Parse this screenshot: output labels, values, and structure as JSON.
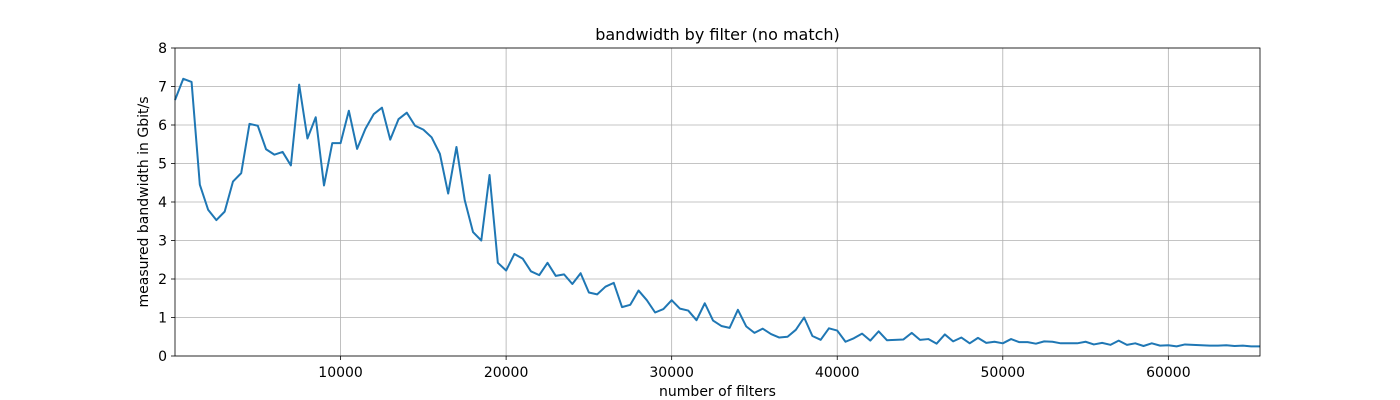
{
  "chart_data": {
    "type": "line",
    "title": "bandwidth by filter (no match)",
    "xlabel": "number of filters",
    "ylabel": "measured bandwidth in Gbit/s",
    "xlim": [
      0,
      65536
    ],
    "ylim": [
      0,
      8
    ],
    "x_ticks": [
      10000,
      20000,
      30000,
      40000,
      50000,
      60000
    ],
    "x_tick_labels": [
      "10000",
      "20000",
      "30000",
      "40000",
      "50000",
      "60000"
    ],
    "y_ticks": [
      0,
      1,
      2,
      3,
      4,
      5,
      6,
      7,
      8
    ],
    "y_tick_labels": [
      "0",
      "1",
      "2",
      "3",
      "4",
      "5",
      "6",
      "7",
      "8"
    ],
    "grid": true,
    "color": "#1f77b4",
    "series": [
      {
        "x": [
          0,
          500,
          1000,
          1500,
          2000,
          2500,
          3000,
          3500,
          4000,
          4500,
          5000,
          5500,
          6000,
          6500,
          7000,
          7500,
          8000,
          8500,
          9000,
          9500,
          10000,
          10500,
          11000,
          11500,
          12000,
          12500,
          13000,
          13500,
          14000,
          14500,
          15000,
          15500,
          16000,
          16500,
          17000,
          17500,
          18000,
          18500,
          19000,
          19500,
          20000,
          20500,
          21000,
          21500,
          22000,
          22500,
          23000,
          23500,
          24000,
          24500,
          25000,
          25500,
          26000,
          26500,
          27000,
          27500,
          28000,
          28500,
          29000,
          29500,
          30000,
          30500,
          31000,
          31500,
          32000,
          32500,
          33000,
          33500,
          34000,
          34500,
          35000,
          35500,
          36000,
          36500,
          37000,
          37500,
          38000,
          38500,
          39000,
          39500,
          40000,
          40500,
          41000,
          41500,
          42000,
          42500,
          43000,
          43500,
          44000,
          44500,
          45000,
          45500,
          46000,
          46500,
          47000,
          47500,
          48000,
          48500,
          49000,
          49500,
          50000,
          50500,
          51000,
          51500,
          52000,
          52500,
          53000,
          53500,
          54000,
          54500,
          55000,
          55500,
          56000,
          56500,
          57000,
          57500,
          58000,
          58500,
          59000,
          59500,
          60000,
          60500,
          61000,
          61500,
          62000,
          62500,
          63000,
          63500,
          64000,
          64500,
          65000,
          65536
        ],
        "values": [
          6.65,
          7.2,
          7.12,
          4.45,
          3.8,
          3.53,
          3.75,
          4.53,
          4.75,
          6.03,
          5.98,
          5.37,
          5.23,
          5.3,
          4.95,
          7.05,
          5.65,
          6.2,
          4.43,
          5.53,
          5.53,
          6.37,
          5.38,
          5.9,
          6.28,
          6.45,
          5.62,
          6.15,
          6.32,
          5.98,
          5.88,
          5.68,
          5.25,
          4.22,
          5.43,
          4.05,
          3.22,
          3.0,
          4.7,
          2.42,
          2.22,
          2.65,
          2.53,
          2.2,
          2.1,
          2.42,
          2.08,
          2.12,
          1.87,
          2.15,
          1.65,
          1.6,
          1.8,
          1.9,
          1.27,
          1.33,
          1.7,
          1.45,
          1.13,
          1.22,
          1.45,
          1.23,
          1.18,
          0.93,
          1.37,
          0.92,
          0.78,
          0.73,
          1.2,
          0.77,
          0.6,
          0.71,
          0.57,
          0.48,
          0.5,
          0.68,
          1.0,
          0.52,
          0.42,
          0.72,
          0.66,
          0.37,
          0.46,
          0.58,
          0.4,
          0.64,
          0.41,
          0.42,
          0.43,
          0.6,
          0.42,
          0.44,
          0.32,
          0.56,
          0.38,
          0.48,
          0.33,
          0.47,
          0.34,
          0.37,
          0.33,
          0.44,
          0.36,
          0.36,
          0.32,
          0.38,
          0.37,
          0.33,
          0.33,
          0.33,
          0.37,
          0.3,
          0.34,
          0.29,
          0.4,
          0.29,
          0.33,
          0.26,
          0.33,
          0.27,
          0.28,
          0.25,
          0.3,
          0.29,
          0.28,
          0.27,
          0.27,
          0.28,
          0.26,
          0.27,
          0.25,
          0.25
        ]
      }
    ]
  }
}
